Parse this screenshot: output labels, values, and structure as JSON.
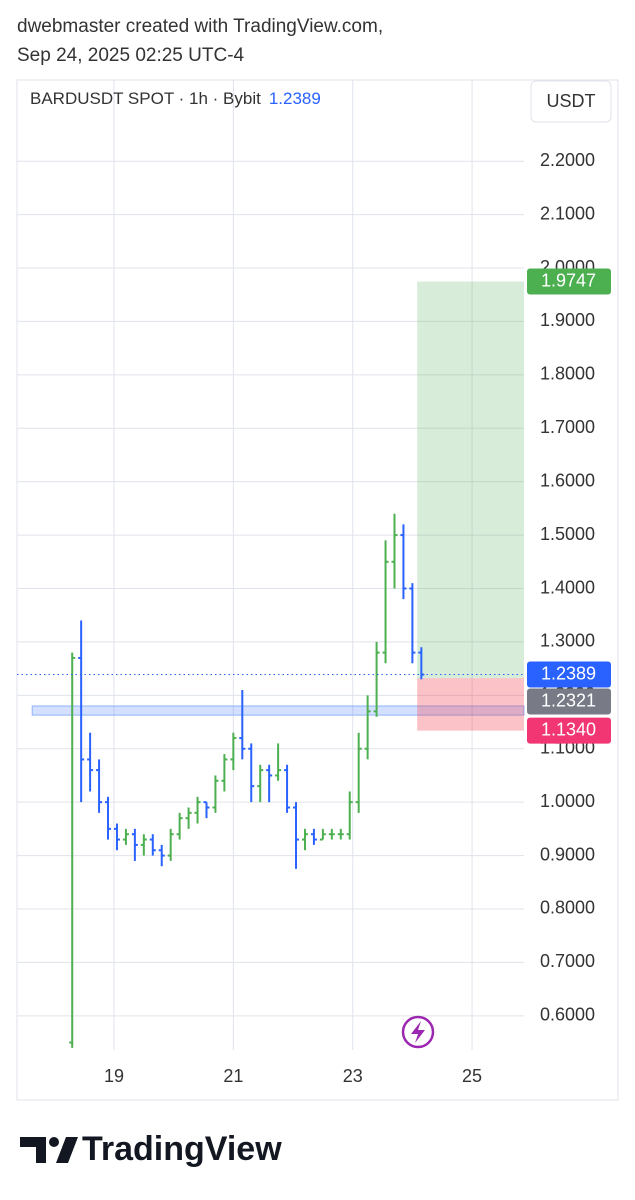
{
  "header": {
    "line1": "dwebmaster created with TradingView.com,",
    "line2": "Sep 24, 2025 02:25 UTC-4"
  },
  "chart_data": {
    "type": "ohlc",
    "symbol": "BARDUSDT SPOT · 1h · Bybit",
    "currency": "USDT",
    "last_price": 1.2389,
    "x": [
      18.3,
      18.45,
      18.6,
      18.75,
      18.9,
      19.05,
      19.2,
      19.35,
      19.5,
      19.65,
      19.8,
      19.95,
      20.1,
      20.25,
      20.4,
      20.55,
      20.7,
      20.85,
      21,
      21.15,
      21.3,
      21.45,
      21.6,
      21.75,
      21.9,
      22.05,
      22.2,
      22.35,
      22.5,
      22.65,
      22.8,
      22.95,
      23.1,
      23.25,
      23.4,
      23.55,
      23.7,
      23.85,
      24,
      24.15
    ],
    "open": [
      0.55,
      1.27,
      1.08,
      1.06,
      1.0,
      0.95,
      0.93,
      0.94,
      0.92,
      0.93,
      0.91,
      0.9,
      0.94,
      0.97,
      0.98,
      1.0,
      0.99,
      1.04,
      1.08,
      1.12,
      1.1,
      1.03,
      1.06,
      1.05,
      1.06,
      0.99,
      0.93,
      0.94,
      0.93,
      0.94,
      0.94,
      0.94,
      1.0,
      1.1,
      1.17,
      1.28,
      1.45,
      1.5,
      1.4,
      1.28
    ],
    "high": [
      1.28,
      1.34,
      1.13,
      1.08,
      1.01,
      0.96,
      0.95,
      0.95,
      0.94,
      0.94,
      0.92,
      0.95,
      0.98,
      0.99,
      1.01,
      1.0,
      1.05,
      1.09,
      1.13,
      1.21,
      1.11,
      1.07,
      1.07,
      1.11,
      1.07,
      1.0,
      0.95,
      0.95,
      0.95,
      0.95,
      0.95,
      1.02,
      1.13,
      1.2,
      1.3,
      1.49,
      1.54,
      1.52,
      1.41,
      1.29
    ],
    "low": [
      0.54,
      1.0,
      1.02,
      0.98,
      0.93,
      0.91,
      0.92,
      0.89,
      0.9,
      0.9,
      0.88,
      0.89,
      0.93,
      0.95,
      0.96,
      0.97,
      0.98,
      1.02,
      1.06,
      1.08,
      1.0,
      1.0,
      1.0,
      1.04,
      0.98,
      0.875,
      0.91,
      0.92,
      0.93,
      0.93,
      0.93,
      0.93,
      0.98,
      1.08,
      1.16,
      1.26,
      1.4,
      1.38,
      1.26,
      1.23
    ],
    "close": [
      1.27,
      1.08,
      1.06,
      1.0,
      0.95,
      0.93,
      0.94,
      0.92,
      0.93,
      0.91,
      0.9,
      0.94,
      0.97,
      0.98,
      1.0,
      0.99,
      1.04,
      1.08,
      1.12,
      1.1,
      1.03,
      1.06,
      1.05,
      1.06,
      0.99,
      0.93,
      0.94,
      0.93,
      0.94,
      0.94,
      0.94,
      1.0,
      1.1,
      1.17,
      1.28,
      1.45,
      1.5,
      1.4,
      1.28,
      1.2389
    ],
    "up_color": "#4caf50",
    "down_color": "#2962ff",
    "zone": [
      1.163,
      1.18
    ],
    "zone_start": 17.63,
    "position": {
      "start": 24.08,
      "target": 1.9747,
      "entry": 1.2321,
      "stop": {
        "value": 1.134,
        "label": "1.1340"
      }
    },
    "xlim": [
      17.375,
      25.87
    ],
    "xticks": [
      19,
      21,
      23,
      25
    ],
    "ylim": [
      0.536,
      2.352
    ],
    "yticks": [
      {
        "value": 0.6,
        "label": "0.6000"
      },
      {
        "value": 0.7,
        "label": "0.7000"
      },
      {
        "value": 0.8,
        "label": "0.8000"
      },
      {
        "value": 0.9,
        "label": "0.9000"
      },
      {
        "value": 1.0,
        "label": "1.0000"
      },
      {
        "value": 1.1,
        "label": "1.1000"
      },
      {
        "value": 1.2,
        "label": "1.2000"
      },
      {
        "value": 1.3,
        "label": "1.3000"
      },
      {
        "value": 1.4,
        "label": "1.4000"
      },
      {
        "value": 1.5,
        "label": "1.5000"
      },
      {
        "value": 1.6,
        "label": "1.6000"
      },
      {
        "value": 1.7,
        "label": "1.7000"
      },
      {
        "value": 1.8,
        "label": "1.8000"
      },
      {
        "value": 1.9,
        "label": "1.9000"
      },
      {
        "value": 2.0,
        "label": "2.0000"
      },
      {
        "value": 2.1,
        "label": "2.1000"
      },
      {
        "value": 2.2,
        "label": "2.2000"
      }
    ],
    "grid": true
  },
  "footer": {
    "brand": "TradingView"
  }
}
